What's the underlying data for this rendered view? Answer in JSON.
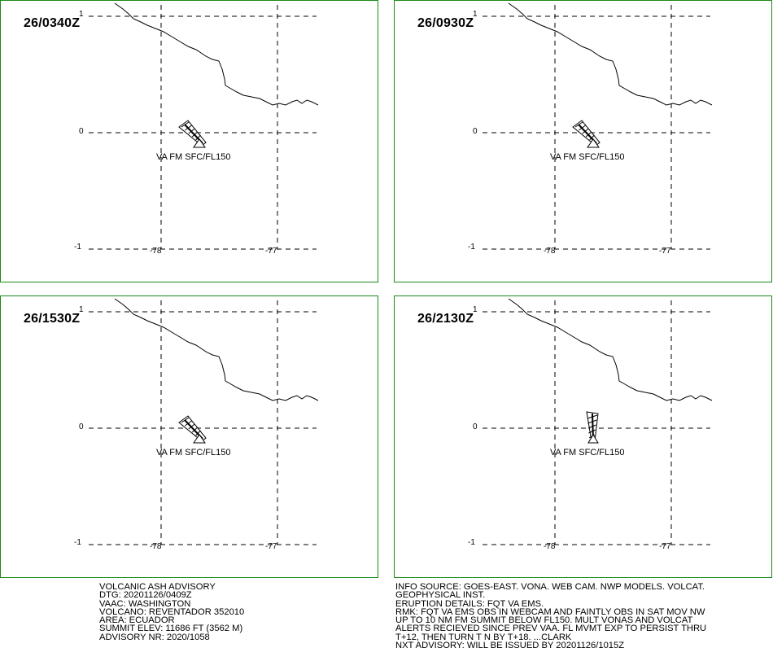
{
  "panels": [
    {
      "time_label": "26/0340Z",
      "cloud_label": "VA FM SFC/FL150",
      "plume": "nw"
    },
    {
      "time_label": "26/0930Z",
      "cloud_label": "VA FM SFC/FL150",
      "plume": "nw"
    },
    {
      "time_label": "26/1530Z",
      "cloud_label": "VA FM SFC/FL150",
      "plume": "nw"
    },
    {
      "time_label": "26/2130Z",
      "cloud_label": "VA FM SFC/FL150",
      "plume": "n"
    }
  ],
  "axes": {
    "lat_labels": [
      "1",
      "0",
      "-1"
    ],
    "lon_labels": [
      "-78",
      "-77"
    ]
  },
  "advisory_left": [
    "VOLCANIC ASH ADVISORY",
    "DTG: 20201126/0409Z",
    "VAAC: WASHINGTON",
    "VOLCANO: REVENTADOR 352010",
    "AREA: ECUADOR",
    "SUMMIT ELEV: 11686 FT (3562 M)",
    "ADVISORY NR: 2020/1058"
  ],
  "advisory_right": [
    "INFO SOURCE: GOES-EAST. VONA. WEB CAM. NWP MODELS. VOLCAT.",
    "GEOPHYSICAL INST.",
    "ERUPTION DETAILS: FQT VA EMS.",
    "RMK: FQT VA EMS OBS IN WEBCAM AND FAINTLY OBS IN SAT MOV NW",
    "UP TO 10 NM FM SUMMIT BELOW FL150. MULT VONAS AND VOLCAT",
    "ALERTS RECIEVED SINCE PREV VAA. FL MVMT EXP TO PERSIST THRU",
    "T+12, THEN TURN T N BY T+18. ...CLARK",
    "NXT ADVISORY: WILL BE ISSUED BY 20201126/1015Z"
  ]
}
